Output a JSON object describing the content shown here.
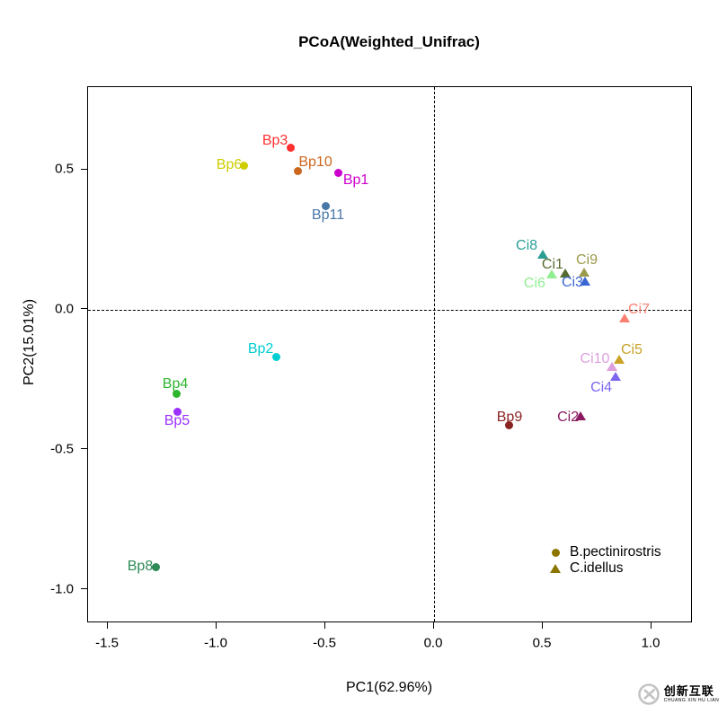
{
  "chart_data": {
    "type": "scatter",
    "title": "PCoA(Weighted_Unifrac)",
    "xlabel": "PC1(62.96%)",
    "ylabel": "PC2(15.01%)",
    "xlim": [
      -1.591,
      1.19
    ],
    "ylim": [
      -1.119,
      0.795
    ],
    "grid": false,
    "x_ticks": {
      "values": [
        -1.5,
        -1.0,
        -0.5,
        0.0,
        0.5,
        1.0
      ],
      "labels": [
        "-1.5",
        "-1.0",
        "-0.5",
        "0.0",
        "0.5",
        "1.0"
      ]
    },
    "y_ticks": {
      "values": [
        0.5,
        0.0,
        -0.5,
        -1.0
      ],
      "labels": [
        "0.5",
        "0.0",
        "-0.5",
        "-1.0"
      ]
    },
    "reference_lines": {
      "vertical_x": 0.0,
      "horizontal_y": 0.0,
      "style": "dashed",
      "color": "#000000"
    },
    "legend": {
      "position": "bottom-right",
      "symbol_color": "#8B7500",
      "entries": [
        {
          "label": "B.pectinirostris",
          "marker": "circle"
        },
        {
          "label": "C.idellus",
          "marker": "triangle"
        }
      ]
    },
    "series": [
      {
        "name": "B.pectinirostris",
        "marker": "circle",
        "points": [
          {
            "id": "Bp1",
            "x": -0.442,
            "y": 0.49,
            "color": "#CC00CC",
            "label_offset": [
              20,
              9
            ]
          },
          {
            "id": "Bp2",
            "x": -0.727,
            "y": -0.17,
            "color": "#00CED1",
            "label_offset": [
              -17,
              -9
            ]
          },
          {
            "id": "Bp3",
            "x": -0.661,
            "y": 0.577,
            "color": "#FF3030",
            "label_offset": [
              -17,
              -8
            ]
          },
          {
            "id": "Bp4",
            "x": -1.186,
            "y": -0.301,
            "color": "#2DB52D",
            "label_offset": [
              -1,
              -11
            ]
          },
          {
            "id": "Bp5",
            "x": -1.178,
            "y": -0.365,
            "color": "#9B30FF",
            "label_offset": [
              -1,
              10
            ]
          },
          {
            "id": "Bp6",
            "x": -0.876,
            "y": 0.516,
            "color": "#CDCD00",
            "label_offset": [
              -16,
              0
            ]
          },
          {
            "id": "Bp8",
            "x": -1.277,
            "y": -0.92,
            "color": "#2E8B57",
            "label_offset": [
              -18,
              -1
            ]
          },
          {
            "id": "Bp9",
            "x": 0.347,
            "y": -0.413,
            "color": "#8B2323",
            "label_offset": [
              0,
              -9
            ]
          },
          {
            "id": "Bp10",
            "x": -0.628,
            "y": 0.494,
            "color": "#CD661D",
            "label_offset": [
              20,
              -10
            ]
          },
          {
            "id": "Bp11",
            "x": -0.5,
            "y": 0.369,
            "color": "#4878A8",
            "label_offset": [
              3,
              10
            ]
          }
        ]
      },
      {
        "name": "C.idellus",
        "marker": "triangle",
        "points": [
          {
            "id": "Ci1",
            "x": 0.603,
            "y": 0.131,
            "color": "#556B2F",
            "label_offset": [
              -14,
              -9
            ]
          },
          {
            "id": "Ci2",
            "x": 0.674,
            "y": -0.378,
            "color": "#8B1C62",
            "label_offset": [
              -14,
              2
            ]
          },
          {
            "id": "Ci3",
            "x": 0.694,
            "y": 0.103,
            "color": "#3A66D4",
            "label_offset": [
              -14,
              2
            ]
          },
          {
            "id": "Ci4",
            "x": 0.835,
            "y": -0.237,
            "color": "#7B68EE",
            "label_offset": [
              -16,
              13
            ]
          },
          {
            "id": "Ci5",
            "x": 0.851,
            "y": -0.176,
            "color": "#C9A227",
            "label_offset": [
              14,
              -10
            ]
          },
          {
            "id": "Ci6",
            "x": 0.541,
            "y": 0.128,
            "color": "#90EE90",
            "label_offset": [
              -19,
              11
            ]
          },
          {
            "id": "Ci7",
            "x": 0.876,
            "y": -0.029,
            "color": "#FA8072",
            "label_offset": [
              16,
              -9
            ]
          },
          {
            "id": "Ci8",
            "x": 0.5,
            "y": 0.199,
            "color": "#2B9E94",
            "label_offset": [
              -18,
              -9
            ]
          },
          {
            "id": "Ci9",
            "x": 0.69,
            "y": 0.135,
            "color": "#9B9B4B",
            "label_offset": [
              3,
              -13
            ]
          },
          {
            "id": "Ci10",
            "x": 0.818,
            "y": -0.202,
            "color": "#DDA0DD",
            "label_offset": [
              -19,
              -8
            ]
          }
        ]
      }
    ]
  },
  "watermark": {
    "logo": "circle-x-icon",
    "text_cn": "创新互联",
    "text_en": "CHUANG XIN HU LIAN",
    "color": "#C3C3C3"
  }
}
